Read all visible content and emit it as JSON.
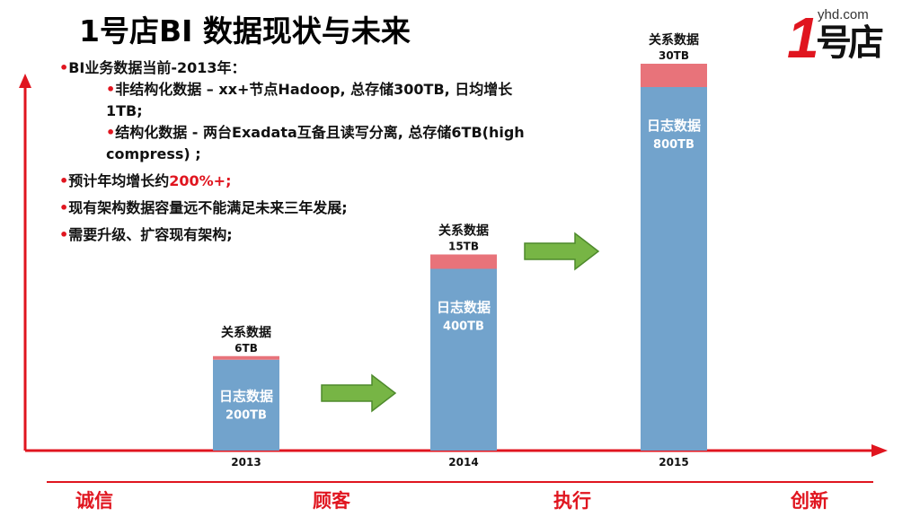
{
  "slide": {
    "title": "1号店BI 数据现状与未来",
    "logo": {
      "url_text": "yhd.com",
      "mark_number": "1",
      "mark_text": "号店"
    },
    "bullets": [
      {
        "text": "BI业务数据当前-2013年：",
        "level": 0
      },
      {
        "text": "非结构化数据 – xx+节点Hadoop, 总存储300TB, 日均增长1TB;",
        "level": 1
      },
      {
        "text": "结构化数据 - 两台Exadata互备且读写分离, 总存储6TB(high compress) ;",
        "level": 1
      },
      {
        "text_before": "预计年均增长约",
        "highlight": "200%+;",
        "level": 0
      },
      {
        "text": "现有架构数据容量远不能满足未来三年发展;",
        "level": 0
      },
      {
        "text": "需要升级、扩容现有架构;",
        "level": 0
      }
    ],
    "footer": [
      "诚信",
      "顾客",
      "执行",
      "创新"
    ],
    "colors": {
      "accent_red": "#e0151f",
      "log_bar": "#72a3cc",
      "rel_bar": "#e8737a",
      "arrow_green": "#77b545",
      "arrow_outline": "#4e8a2c"
    }
  },
  "chart_data": {
    "type": "bar",
    "stacked": true,
    "categories": [
      "2013",
      "2014",
      "2015"
    ],
    "series": [
      {
        "name": "日志数据",
        "values": [
          200,
          400,
          800
        ],
        "labels": [
          "200TB",
          "400TB",
          "800TB"
        ]
      },
      {
        "name": "关系数据",
        "values": [
          6,
          15,
          30
        ],
        "labels": [
          "6TB",
          "15TB",
          "30TB"
        ]
      }
    ],
    "unit": "TB",
    "grid": false,
    "legend": "none"
  }
}
